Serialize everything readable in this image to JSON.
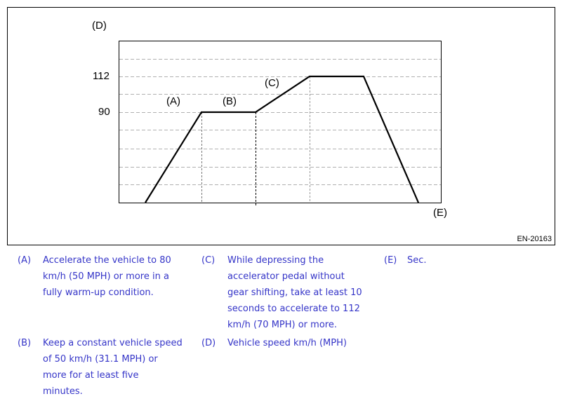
{
  "diagram": {
    "y_axis_label": "(D)",
    "x_axis_label": "(E)",
    "y_ticks": [
      "112",
      "90"
    ],
    "segment_labels": [
      "(A)",
      "(B)",
      "(C)"
    ],
    "speed_profile": [
      0,
      90,
      90,
      112,
      112,
      0
    ],
    "figure_code": "EN-20163"
  },
  "notes": [
    {
      "key": "(A)",
      "text": [
        "Accelerate the vehicle to 80",
        "km/h (50 MPH) or more in a",
        "fully warm-up condition."
      ]
    },
    {
      "key": "(B)",
      "text": [
        "Keep a constant vehicle speed",
        "of 50 km/h (31.1 MPH) or",
        "more for at least five",
        "minutes."
      ]
    },
    {
      "key": "(C)",
      "text": [
        "While depressing the",
        "accelerator pedal without",
        "gear shifting, take at least 10",
        "seconds to accelerate to 112",
        "km/h (70 MPH) or more."
      ]
    },
    {
      "key": "(D)",
      "text": [
        "Vehicle speed km/h (MPH)"
      ]
    },
    {
      "key": "(E)",
      "text": [
        "Sec."
      ]
    }
  ],
  "colors": {
    "notes_text": "#3535c8",
    "line": "#000000",
    "grid": "#b0b0b0"
  }
}
